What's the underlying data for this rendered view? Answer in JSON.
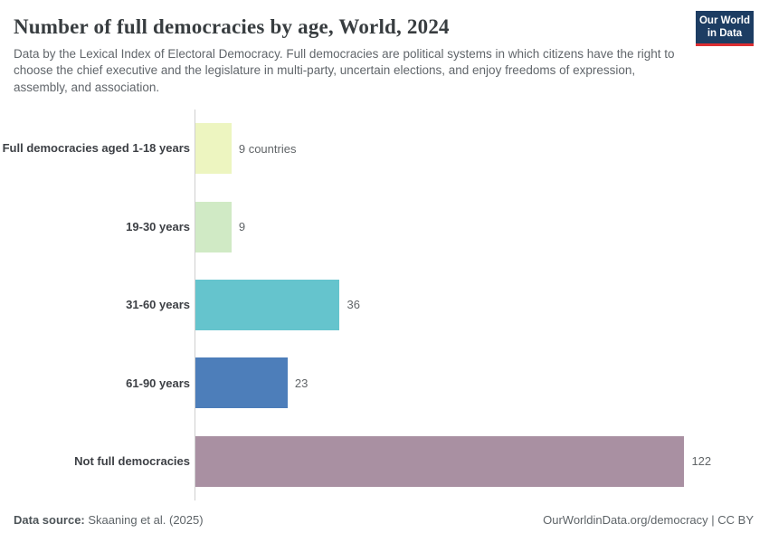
{
  "header": {
    "title": "Number of full democracies by age, World, 2024",
    "subtitle": "Data by the Lexical Index of Electoral Democracy. Full democracies are political systems in which citizens have the right to choose the chief executive and the legislature in multi-party, uncertain elections, and enjoy freedoms of expression, assembly, and association.",
    "logo": {
      "line1": "Our World",
      "line2": "in Data",
      "bg_color": "#1d3d63",
      "accent_color": "#dc2e32"
    }
  },
  "chart_data": {
    "type": "bar",
    "orientation": "horizontal",
    "title": "Number of full democracies by age, World, 2024",
    "categories": [
      "Full democracies aged 1-18 years",
      "19-30 years",
      "31-60 years",
      "61-90 years",
      "Not full democracies"
    ],
    "values": [
      9,
      9,
      36,
      23,
      122
    ],
    "value_labels": [
      "9 countries",
      "9",
      "36",
      "23",
      "122"
    ],
    "bar_colors": [
      "#edf5c0",
      "#d0eac5",
      "#65c4cd",
      "#4d7eba",
      "#a990a2"
    ],
    "axis_color": "#cfcfcf",
    "xlim": [
      0,
      140
    ],
    "grid": false,
    "legend": false
  },
  "footer": {
    "source_label": "Data source:",
    "source_text": "Skaaning et al. (2025)",
    "right_text": "OurWorldinData.org/democracy | CC BY"
  }
}
